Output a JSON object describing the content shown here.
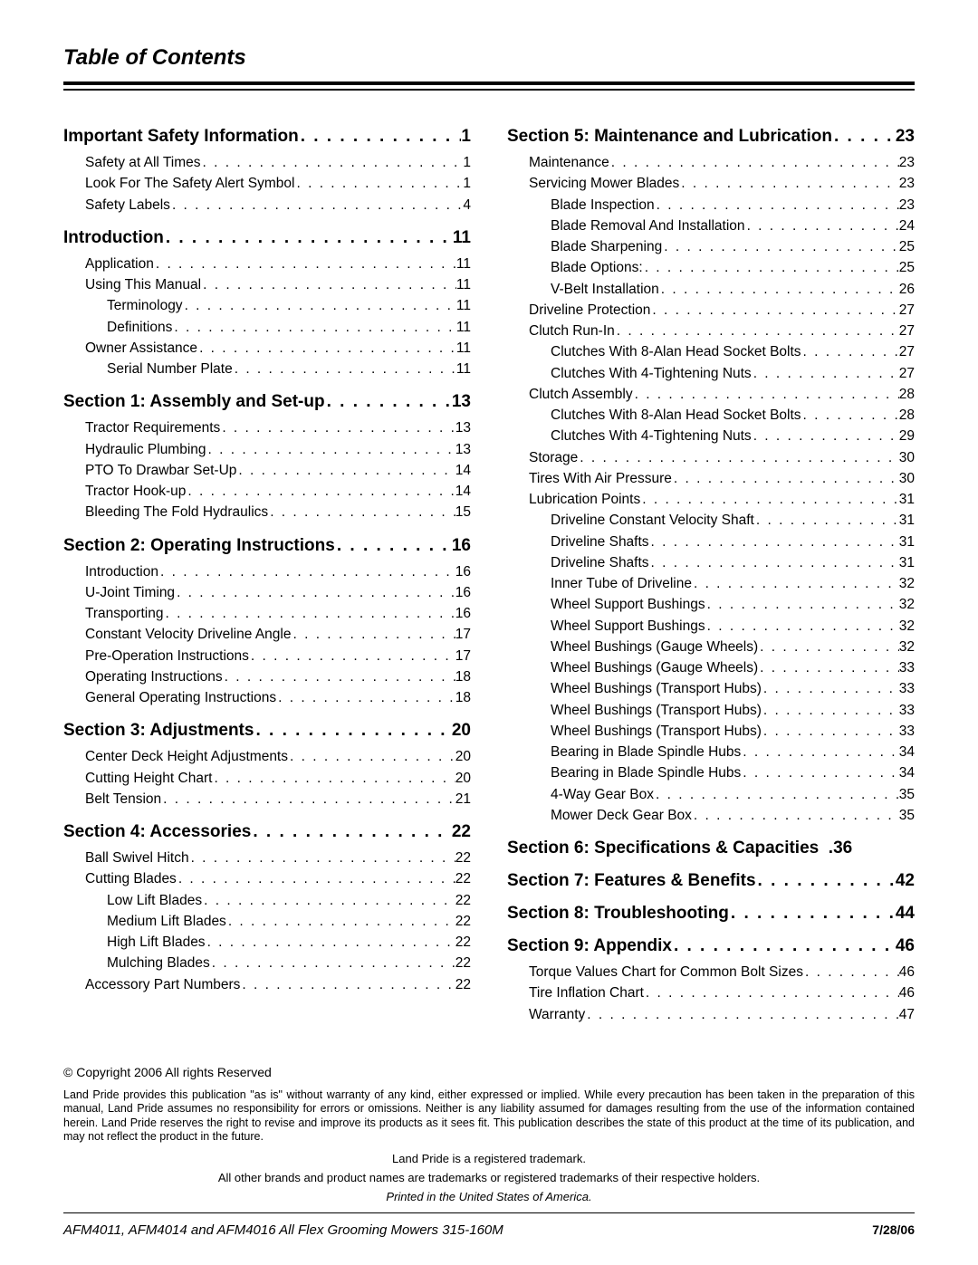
{
  "title": "Table of Contents",
  "copyright": "© Copyright 2006 All rights Reserved",
  "disclaimer": "Land Pride provides this publication \"as is\" without warranty of any kind, either expressed or implied. While every precaution has been taken in the preparation of this manual, Land Pride assumes no responsibility for errors or omissions. Neither is any liability assumed for damages resulting from the use of the information contained herein. Land Pride reserves the right to revise and improve its products as it sees fit. This publication describes the state of this product at the time of its publication, and may not reflect the product in the future.",
  "trademark1": "Land Pride is a registered trademark.",
  "trademark2": "All other brands and product names are trademarks or registered trademarks of their respective holders.",
  "printed": "Printed in the United States of America.",
  "footer_left": "AFM4011, AFM4014 and AFM4016 All Flex Grooming Mowers   315-160M",
  "footer_right": "7/28/06",
  "toc": {
    "left": [
      {
        "type": "section",
        "label": "Important Safety Information",
        "page": "1"
      },
      {
        "type": "entry",
        "indent": 1,
        "label": "Safety at All Times",
        "page": "1"
      },
      {
        "type": "entry",
        "indent": 1,
        "label": "Look For The Safety Alert Symbol",
        "page": "1"
      },
      {
        "type": "entry",
        "indent": 1,
        "label": "Safety Labels",
        "page": "4"
      },
      {
        "type": "section",
        "label": "Introduction",
        "page": "11"
      },
      {
        "type": "entry",
        "indent": 1,
        "label": "Application",
        "page": "11"
      },
      {
        "type": "entry",
        "indent": 1,
        "label": "Using This Manual",
        "page": "11"
      },
      {
        "type": "entry",
        "indent": 2,
        "label": "Terminology",
        "page": "11"
      },
      {
        "type": "entry",
        "indent": 2,
        "label": "Definitions",
        "page": "11"
      },
      {
        "type": "entry",
        "indent": 1,
        "label": "Owner Assistance",
        "page": "11"
      },
      {
        "type": "entry",
        "indent": 2,
        "label": "Serial Number Plate",
        "page": "11"
      },
      {
        "type": "section",
        "label": "Section 1:  Assembly and Set-up",
        "page": "13"
      },
      {
        "type": "entry",
        "indent": 1,
        "label": "Tractor Requirements",
        "page": "13"
      },
      {
        "type": "entry",
        "indent": 1,
        "label": "Hydraulic Plumbing",
        "page": "13"
      },
      {
        "type": "entry",
        "indent": 1,
        "label": "PTO To Drawbar Set-Up",
        "page": "14"
      },
      {
        "type": "entry",
        "indent": 1,
        "label": "Tractor Hook-up",
        "page": "14"
      },
      {
        "type": "entry",
        "indent": 1,
        "label": "Bleeding The Fold Hydraulics",
        "page": "15"
      },
      {
        "type": "section",
        "label": "Section 2:  Operating Instructions",
        "page": "16"
      },
      {
        "type": "entry",
        "indent": 1,
        "label": "Introduction",
        "page": "16"
      },
      {
        "type": "entry",
        "indent": 1,
        "label": "U-Joint Timing",
        "page": "16"
      },
      {
        "type": "entry",
        "indent": 1,
        "label": "Transporting",
        "page": "16"
      },
      {
        "type": "entry",
        "indent": 1,
        "label": "Constant Velocity Driveline Angle",
        "page": "17"
      },
      {
        "type": "entry",
        "indent": 1,
        "label": "Pre-Operation Instructions",
        "page": "17"
      },
      {
        "type": "entry",
        "indent": 1,
        "label": "Operating Instructions",
        "page": "18"
      },
      {
        "type": "entry",
        "indent": 1,
        "label": "General Operating Instructions",
        "page": "18"
      },
      {
        "type": "section",
        "label": "Section 3:  Adjustments",
        "page": "20"
      },
      {
        "type": "entry",
        "indent": 1,
        "label": "Center Deck Height Adjustments",
        "page": "20"
      },
      {
        "type": "entry",
        "indent": 1,
        "label": "Cutting Height Chart",
        "page": "20"
      },
      {
        "type": "entry",
        "indent": 1,
        "label": "Belt Tension",
        "page": "21"
      },
      {
        "type": "section",
        "label": "Section 4:  Accessories",
        "page": "22"
      },
      {
        "type": "entry",
        "indent": 1,
        "label": "Ball Swivel Hitch",
        "page": "22"
      },
      {
        "type": "entry",
        "indent": 1,
        "label": "Cutting Blades",
        "page": "22"
      },
      {
        "type": "entry",
        "indent": 2,
        "label": "Low Lift Blades",
        "page": "22"
      },
      {
        "type": "entry",
        "indent": 2,
        "label": "Medium Lift Blades",
        "page": "22"
      },
      {
        "type": "entry",
        "indent": 2,
        "label": "High Lift Blades",
        "page": "22"
      },
      {
        "type": "entry",
        "indent": 2,
        "label": "Mulching Blades",
        "page": "22"
      },
      {
        "type": "entry",
        "indent": 1,
        "label": "Accessory Part Numbers",
        "page": "22"
      }
    ],
    "right": [
      {
        "type": "section",
        "label": "Section 5:  Maintenance and Lubrication",
        "page": "23"
      },
      {
        "type": "entry",
        "indent": 1,
        "label": "Maintenance",
        "page": "23"
      },
      {
        "type": "entry",
        "indent": 1,
        "label": "Servicing Mower Blades",
        "page": "23"
      },
      {
        "type": "entry",
        "indent": 2,
        "label": "Blade Inspection",
        "page": "23"
      },
      {
        "type": "entry",
        "indent": 2,
        "label": "Blade Removal And Installation",
        "page": "24"
      },
      {
        "type": "entry",
        "indent": 2,
        "label": "Blade Sharpening",
        "page": "25"
      },
      {
        "type": "entry",
        "indent": 2,
        "label": "Blade Options:",
        "page": "25"
      },
      {
        "type": "entry",
        "indent": 2,
        "label": "V-Belt Installation",
        "page": "26"
      },
      {
        "type": "entry",
        "indent": 1,
        "label": "Driveline Protection",
        "page": "27"
      },
      {
        "type": "entry",
        "indent": 1,
        "label": "Clutch Run-In",
        "page": "27"
      },
      {
        "type": "entry",
        "indent": 2,
        "label": "Clutches With 8-Alan Head Socket Bolts",
        "page": "27"
      },
      {
        "type": "entry",
        "indent": 2,
        "label": "Clutches With 4-Tightening Nuts",
        "page": "27"
      },
      {
        "type": "entry",
        "indent": 1,
        "label": "Clutch Assembly",
        "page": "28"
      },
      {
        "type": "entry",
        "indent": 2,
        "label": "Clutches With 8-Alan Head Socket Bolts",
        "page": "28"
      },
      {
        "type": "entry",
        "indent": 2,
        "label": "Clutches With 4-Tightening Nuts",
        "page": "29"
      },
      {
        "type": "entry",
        "indent": 1,
        "label": "Storage",
        "page": "30"
      },
      {
        "type": "entry",
        "indent": 1,
        "label": "Tires With Air Pressure",
        "page": "30"
      },
      {
        "type": "entry",
        "indent": 1,
        "label": "Lubrication Points",
        "page": "31"
      },
      {
        "type": "entry",
        "indent": 2,
        "label": "Driveline Constant Velocity Shaft",
        "page": "31"
      },
      {
        "type": "entry",
        "indent": 2,
        "label": "Driveline Shafts",
        "page": "31"
      },
      {
        "type": "entry",
        "indent": 2,
        "label": "Driveline Shafts",
        "page": "31"
      },
      {
        "type": "entry",
        "indent": 2,
        "label": "Inner Tube of Driveline",
        "page": "32"
      },
      {
        "type": "entry",
        "indent": 2,
        "label": "Wheel Support Bushings",
        "page": "32"
      },
      {
        "type": "entry",
        "indent": 2,
        "label": "Wheel Support Bushings",
        "page": "32"
      },
      {
        "type": "entry",
        "indent": 2,
        "label": "Wheel Bushings (Gauge Wheels)",
        "page": "32"
      },
      {
        "type": "entry",
        "indent": 2,
        "label": "Wheel Bushings (Gauge Wheels)",
        "page": "33"
      },
      {
        "type": "entry",
        "indent": 2,
        "label": "Wheel Bushings (Transport Hubs)",
        "page": "33"
      },
      {
        "type": "entry",
        "indent": 2,
        "label": "Wheel Bushings (Transport Hubs)",
        "page": "33"
      },
      {
        "type": "entry",
        "indent": 2,
        "label": "Wheel Bushings (Transport Hubs)",
        "page": "33"
      },
      {
        "type": "entry",
        "indent": 2,
        "label": "Bearing in Blade Spindle Hubs",
        "page": "34"
      },
      {
        "type": "entry",
        "indent": 2,
        "label": "Bearing in Blade Spindle Hubs",
        "page": "34"
      },
      {
        "type": "entry",
        "indent": 2,
        "label": "4-Way Gear Box",
        "page": "35"
      },
      {
        "type": "entry",
        "indent": 2,
        "label": "Mower Deck Gear Box",
        "page": "35"
      },
      {
        "type": "section",
        "label": "Section 6:  Specifications & Capacities",
        "page": "36",
        "dots": false
      },
      {
        "type": "section",
        "label": "Section 7:  Features & Benefits",
        "page": "42"
      },
      {
        "type": "section",
        "label": "Section 8:  Troubleshooting",
        "page": "44"
      },
      {
        "type": "section",
        "label": "Section 9:  Appendix",
        "page": "46"
      },
      {
        "type": "entry",
        "indent": 1,
        "label": "Torque Values Chart for Common Bolt Sizes",
        "page": "46"
      },
      {
        "type": "entry",
        "indent": 1,
        "label": "Tire Inflation Chart",
        "page": "46"
      },
      {
        "type": "entry",
        "indent": 1,
        "label": "Warranty",
        "page": "47"
      }
    ]
  }
}
